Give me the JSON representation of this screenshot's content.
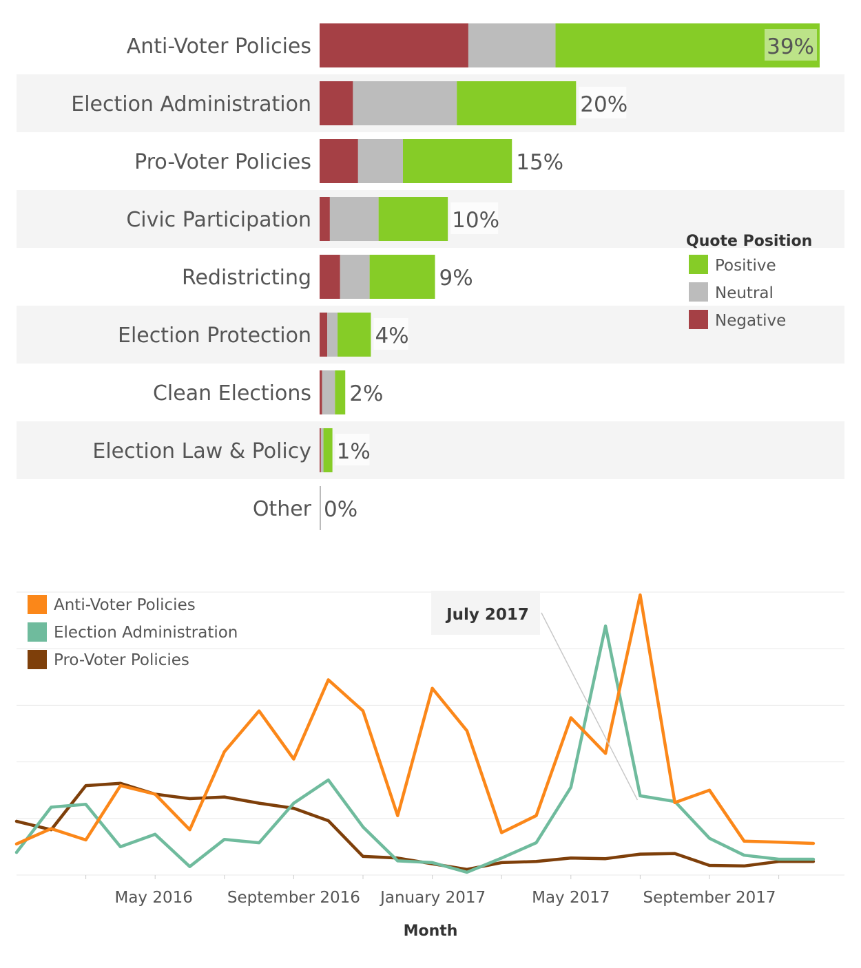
{
  "colors": {
    "positive": "#86cc27",
    "neutral": "#bcbcbc",
    "negative": "#a54045",
    "band": "#f4f4f4",
    "anti_voter": "#fb8719",
    "election_admin": "#6fbb9d",
    "pro_voter": "#7e3f0a",
    "grid": "#e8e8e8",
    "text": "#555555"
  },
  "chart_data": [
    {
      "type": "bar",
      "stacked": true,
      "orientation": "horizontal",
      "categories": [
        "Anti-Voter Policies",
        "Election Administration",
        "Pro-Voter Policies",
        "Civic Participation",
        "Redistricting",
        "Election Protection",
        "Clean Elections",
        "Election Law & Policy",
        "Other"
      ],
      "totals": [
        39,
        20,
        15,
        10,
        9,
        4,
        2,
        1,
        0
      ],
      "total_labels": [
        "39%",
        "20%",
        "15%",
        "10%",
        "9%",
        "4%",
        "2%",
        "1%",
        "0%"
      ],
      "series": [
        {
          "name": "Negative",
          "values": [
            11.6,
            2.6,
            3.0,
            0.8,
            1.6,
            0.6,
            0.2,
            0.1,
            0
          ]
        },
        {
          "name": "Neutral",
          "values": [
            6.8,
            8.1,
            3.5,
            3.8,
            2.3,
            0.8,
            1.0,
            0.2,
            0
          ]
        },
        {
          "name": "Positive",
          "values": [
            20.6,
            9.3,
            8.5,
            5.4,
            5.1,
            2.6,
            0.8,
            0.7,
            0
          ]
        }
      ],
      "legend": {
        "title": "Quote Position",
        "items": [
          "Positive",
          "Neutral",
          "Negative"
        ],
        "placement": "right"
      },
      "xlim": [
        0,
        39
      ]
    },
    {
      "type": "line",
      "xlabel": "Month",
      "x": [
        "2016-01",
        "2016-02",
        "2016-03",
        "2016-04",
        "2016-05",
        "2016-06",
        "2016-07",
        "2016-08",
        "2016-09",
        "2016-10",
        "2016-11",
        "2016-12",
        "2017-01",
        "2017-02",
        "2017-03",
        "2017-04",
        "2017-05",
        "2017-06",
        "2017-07",
        "2017-08",
        "2017-09",
        "2017-10",
        "2017-11",
        "2017-12"
      ],
      "x_ticks": [
        "May 2016",
        "September 2016",
        "January 2017",
        "May 2017",
        "September 2017"
      ],
      "ylim": [
        0,
        500
      ],
      "grid": true,
      "series": [
        {
          "name": "Anti-Voter Policies",
          "values": [
            55,
            82,
            62,
            158,
            143,
            80,
            218,
            290,
            205,
            345,
            290,
            105,
            330,
            255,
            75,
            105,
            278,
            215,
            495,
            128,
            150,
            60,
            58,
            56
          ]
        },
        {
          "name": "Election Administration",
          "values": [
            40,
            120,
            125,
            50,
            72,
            15,
            63,
            57,
            127,
            168,
            85,
            25,
            22,
            5,
            30,
            57,
            155,
            440,
            140,
            130,
            65,
            35,
            28,
            28
          ]
        },
        {
          "name": "Pro-Voter Policies",
          "values": [
            95,
            80,
            158,
            162,
            143,
            135,
            138,
            127,
            118,
            96,
            33,
            30,
            20,
            10,
            22,
            24,
            30,
            29,
            37,
            38,
            17,
            16,
            24,
            24
          ]
        }
      ],
      "legend": {
        "items": [
          "Anti-Voter Policies",
          "Election Administration",
          "Pro-Voter Policies"
        ],
        "placement": "top-left"
      },
      "annotation": {
        "text": "July 2017",
        "x": "2017-07",
        "series": "Election Administration"
      }
    }
  ]
}
